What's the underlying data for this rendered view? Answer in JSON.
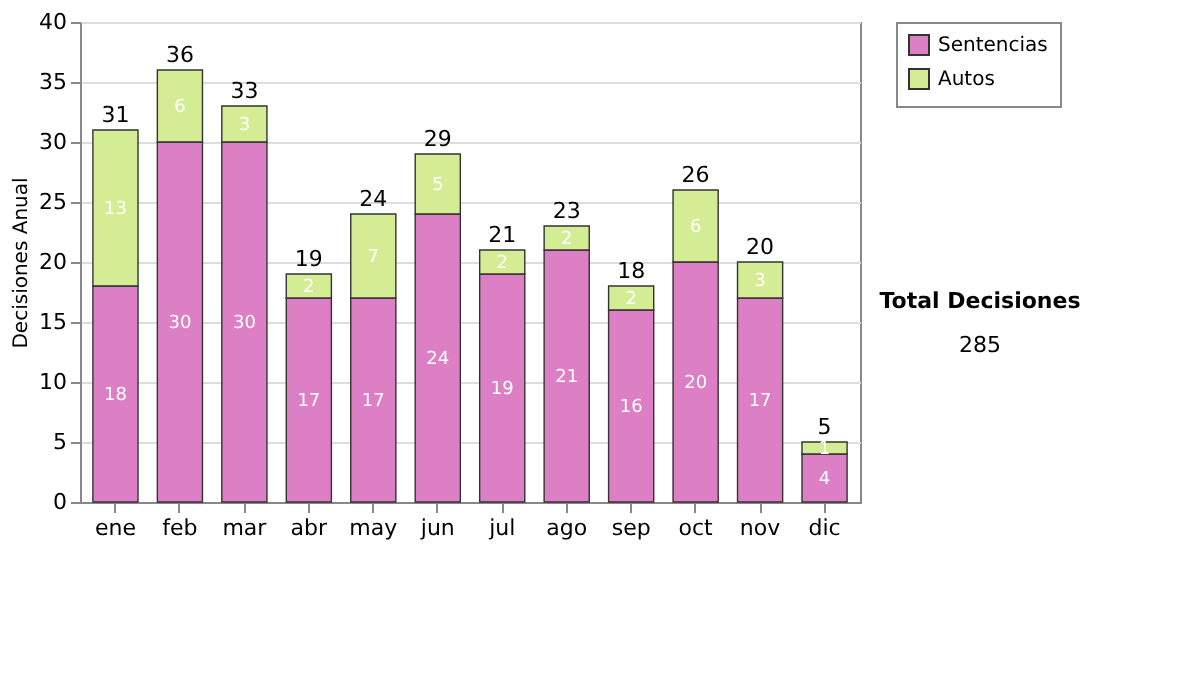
{
  "chart_data": {
    "type": "bar",
    "stacked": true,
    "ylabel": "Decisiones Anual",
    "categories": [
      "ene",
      "feb",
      "mar",
      "abr",
      "may",
      "jun",
      "jul",
      "ago",
      "sep",
      "oct",
      "nov",
      "dic"
    ],
    "series": [
      {
        "name": "Sentencias",
        "color": "#dd7fc4",
        "values": [
          18,
          30,
          30,
          17,
          17,
          24,
          19,
          21,
          16,
          20,
          17,
          4
        ]
      },
      {
        "name": "Autos",
        "color": "#d4ec94",
        "values": [
          13,
          6,
          3,
          2,
          7,
          5,
          2,
          2,
          2,
          6,
          3,
          1
        ]
      }
    ],
    "totals": [
      "31",
      "36",
      "33",
      "19",
      "24",
      "29",
      "21",
      "23",
      "18",
      "26",
      "20",
      "5"
    ],
    "data_labels": true,
    "ylim": [
      0,
      40
    ],
    "yticks": [
      0,
      5,
      10,
      15,
      20,
      25,
      30,
      35,
      40
    ],
    "grid": "y",
    "legend": "right",
    "annotations": [
      "Total Decisiones",
      "285"
    ]
  }
}
